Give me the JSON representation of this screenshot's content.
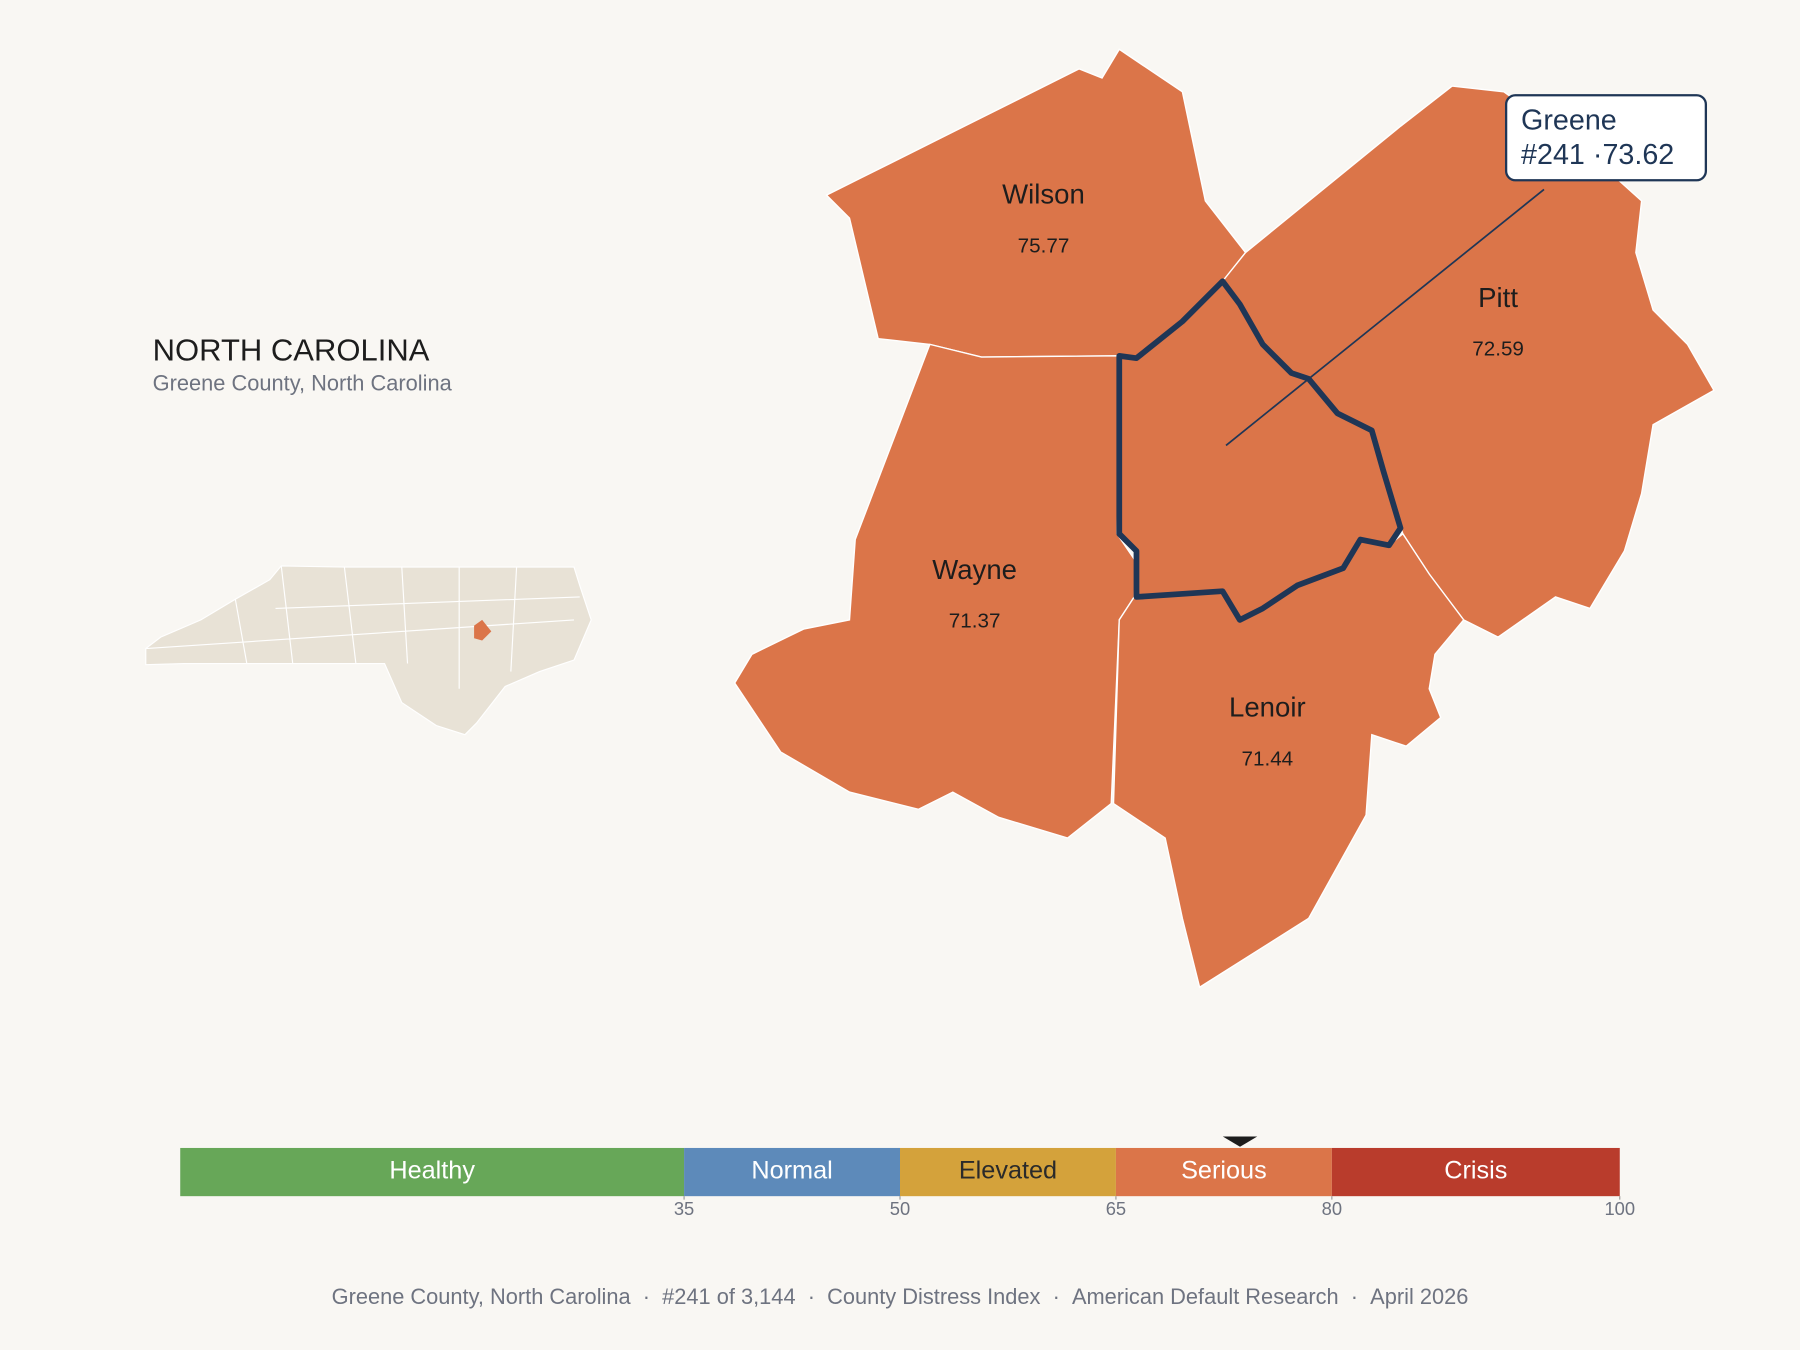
{
  "header": {
    "title": "NORTH CAROLINA",
    "subtitle": "Greene County, North Carolina"
  },
  "counties": [
    {
      "name": "Wilson",
      "value": 75.77
    },
    {
      "name": "Pitt",
      "value": 72.59
    },
    {
      "name": "Wayne",
      "value": 71.37
    },
    {
      "name": "Lenoir",
      "value": 71.44
    }
  ],
  "callout": {
    "name": "Greene",
    "rank": "#241",
    "score": 73.62
  },
  "scale": {
    "range": [
      0,
      100
    ],
    "ticks": [
      35,
      50,
      65,
      80,
      100
    ],
    "bands": [
      {
        "name": "Healthy",
        "color": "#67a758",
        "label_color": "#ffffff"
      },
      {
        "name": "Normal",
        "color": "#5d8aba",
        "label_color": "#ffffff"
      },
      {
        "name": "Elevated",
        "color": "#d4a23b",
        "label_color": "#2a2a2a"
      },
      {
        "name": "Serious",
        "color": "#db7549",
        "label_color": "#ffffff"
      },
      {
        "name": "Crisis",
        "color": "#b93c2c",
        "label_color": "#ffffff"
      }
    ]
  },
  "county_color": "#db7549",
  "footer": [
    "Greene County, North Carolina",
    "#241 of 3,144",
    "County Distress Index",
    "American Default Research",
    "April 2026"
  ]
}
